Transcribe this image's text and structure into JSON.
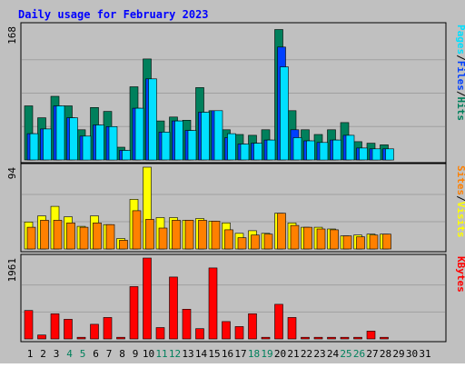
{
  "colors": {
    "background": "#c0c0c0",
    "panel_border": "#000000",
    "gridline": "#a0a0a0",
    "hits": "#00805c",
    "files": "#0040ff",
    "pages": "#00e0ff",
    "visits": "#ffff00",
    "sites": "#ff8000",
    "kbytes": "#ff0000",
    "title": "#0000ff",
    "weekend_label": "#00805c"
  },
  "chart_data": {
    "type": "bar",
    "title": "Daily usage for February 2023",
    "categories": [
      "1",
      "2",
      "3",
      "4",
      "5",
      "6",
      "7",
      "8",
      "9",
      "10",
      "11",
      "12",
      "13",
      "14",
      "15",
      "16",
      "17",
      "18",
      "19",
      "20",
      "21",
      "22",
      "23",
      "24",
      "25",
      "26",
      "27",
      "28",
      "29",
      "30",
      "31"
    ],
    "weekend_days": [
      "4",
      "5",
      "11",
      "12",
      "18",
      "19",
      "25",
      "26"
    ],
    "panels": [
      {
        "id": "hits_files_pages",
        "ymax_label": "168",
        "ylim": [
          0,
          168
        ],
        "right_labels": [
          {
            "text": "Pages",
            "color": "#00e0ff"
          },
          {
            "text": "/",
            "color": "#000000"
          },
          {
            "text": "Files",
            "color": "#0040ff"
          },
          {
            "text": "/",
            "color": "#000000"
          },
          {
            "text": "Hits",
            "color": "#00805c"
          }
        ],
        "series": [
          {
            "name": "Hits",
            "values": [
              68,
              53,
              80,
              68,
              38,
              66,
              61,
              16,
              92,
              127,
              49,
              54,
              50,
              91,
              62,
              38,
              32,
              31,
              38,
              164,
              62,
              38,
              32,
              38,
              47,
              23,
              21,
              19,
              0,
              0,
              0
            ]
          },
          {
            "name": "Files",
            "values": [
              33,
              39,
              68,
              53,
              30,
              44,
              42,
              12,
              65,
              102,
              35,
              49,
              37,
              60,
              62,
              28,
              20,
              21,
              25,
              142,
              38,
              24,
              22,
              25,
              31,
              15,
              14,
              14,
              0,
              0,
              0
            ]
          },
          {
            "name": "Pages",
            "values": [
              33,
              39,
              68,
              53,
              30,
              44,
              42,
              12,
              65,
              102,
              35,
              49,
              37,
              60,
              62,
              33,
              20,
              21,
              25,
              117,
              28,
              24,
              22,
              25,
              31,
              15,
              14,
              14,
              0,
              0,
              0
            ]
          }
        ]
      },
      {
        "id": "visits_sites",
        "ymax_label": "94",
        "ylim": [
          0,
          94
        ],
        "right_labels": [
          {
            "text": "Sites",
            "color": "#ff8000"
          },
          {
            "text": "/",
            "color": "#000000"
          },
          {
            "text": "Visits",
            "color": "#ffff00"
          }
        ],
        "series": [
          {
            "name": "Visits",
            "values": [
              31,
              38,
              49,
              37,
              26,
              38,
              28,
              12,
              57,
              94,
              36,
              36,
              33,
              35,
              32,
              30,
              18,
              21,
              18,
              41,
              30,
              25,
              25,
              23,
              15,
              16,
              17,
              17,
              0,
              0,
              0
            ]
          },
          {
            "name": "Sites",
            "values": [
              25,
              33,
              33,
              30,
              25,
              30,
              28,
              10,
              44,
              34,
              24,
              33,
              33,
              33,
              32,
              22,
              13,
              16,
              17,
              41,
              27,
              25,
              23,
              22,
              15,
              14,
              16,
              17,
              0,
              0,
              0
            ]
          }
        ]
      },
      {
        "id": "kbytes",
        "ymax_label": "1961",
        "ylim": [
          0,
          1961
        ],
        "right_labels": [
          {
            "text": "KBytes",
            "color": "#ff0000"
          }
        ],
        "series": [
          {
            "name": "KBytes",
            "values": [
              690,
              95,
              610,
              475,
              40,
              355,
              520,
              40,
              1270,
              1961,
              275,
              1500,
              720,
              250,
              1720,
              420,
              300,
              610,
              40,
              840,
              520,
              40,
              40,
              40,
              40,
              40,
              190,
              40,
              0,
              0,
              0
            ]
          }
        ]
      }
    ]
  }
}
